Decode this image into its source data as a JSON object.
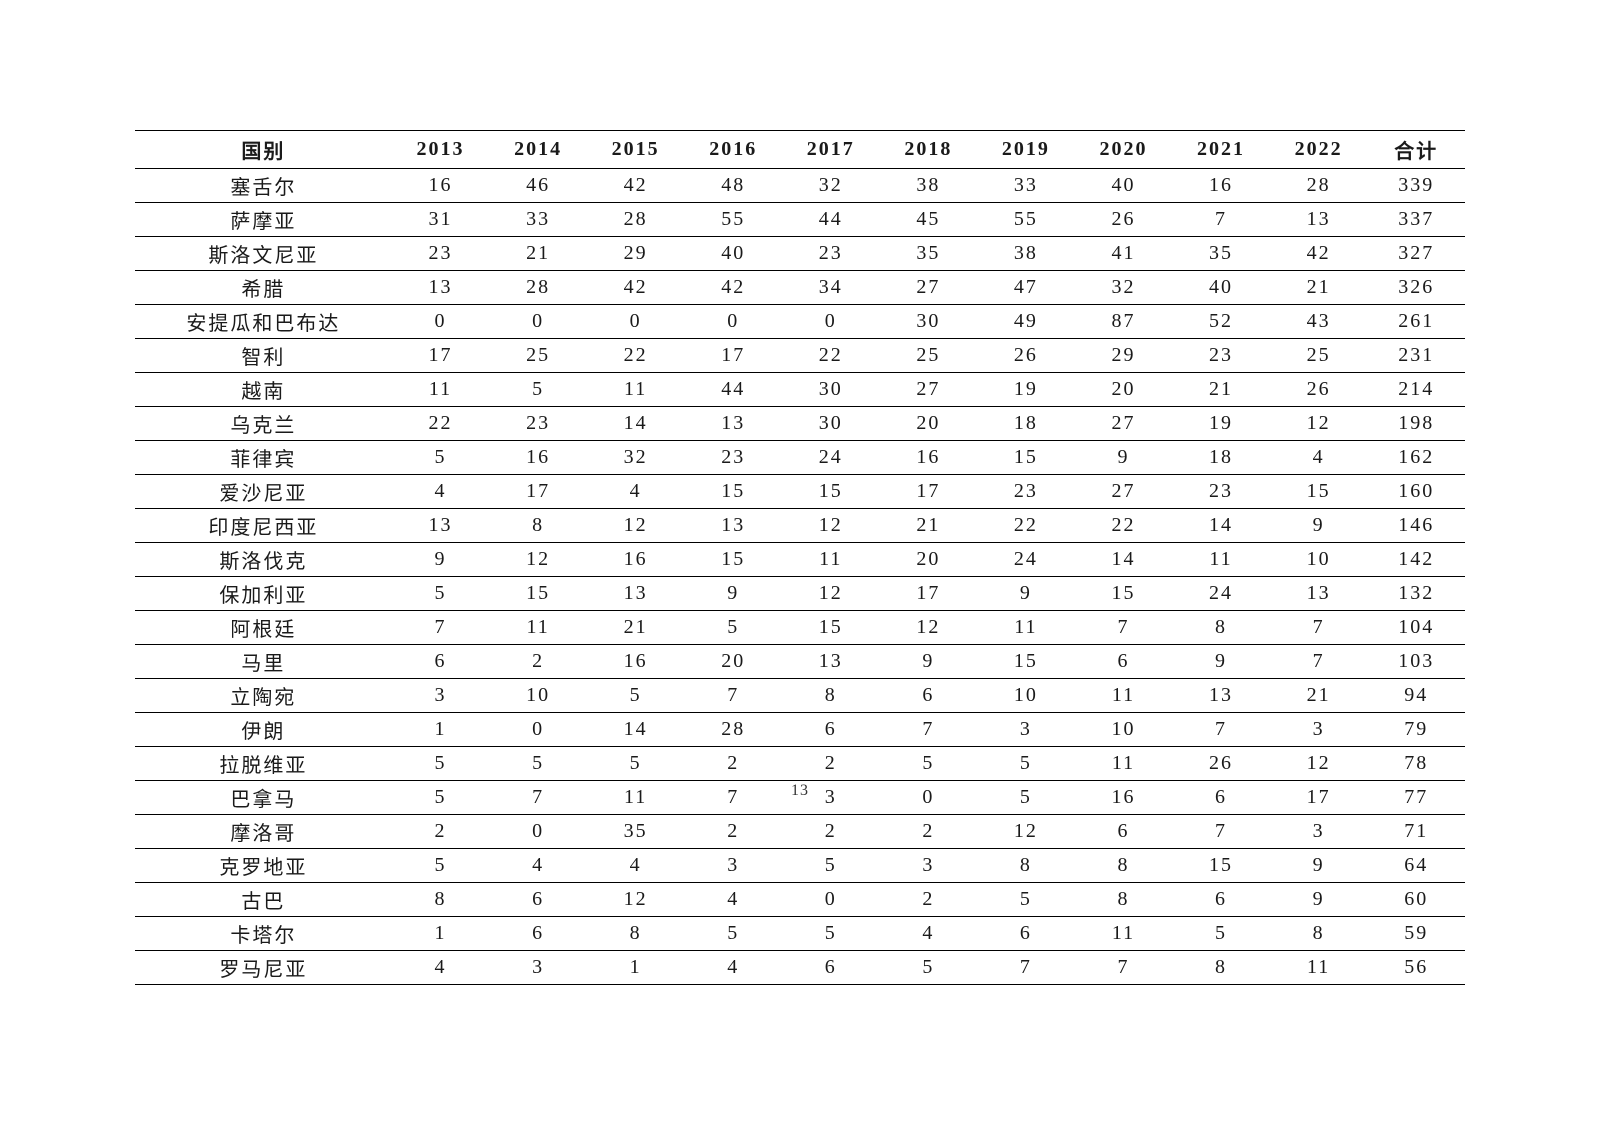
{
  "table": {
    "columns": [
      "国别",
      "2013",
      "2014",
      "2015",
      "2016",
      "2017",
      "2018",
      "2019",
      "2020",
      "2021",
      "2022",
      "合计"
    ],
    "rows": [
      [
        "塞舌尔",
        "16",
        "46",
        "42",
        "48",
        "32",
        "38",
        "33",
        "40",
        "16",
        "28",
        "339"
      ],
      [
        "萨摩亚",
        "31",
        "33",
        "28",
        "55",
        "44",
        "45",
        "55",
        "26",
        "7",
        "13",
        "337"
      ],
      [
        "斯洛文尼亚",
        "23",
        "21",
        "29",
        "40",
        "23",
        "35",
        "38",
        "41",
        "35",
        "42",
        "327"
      ],
      [
        "希腊",
        "13",
        "28",
        "42",
        "42",
        "34",
        "27",
        "47",
        "32",
        "40",
        "21",
        "326"
      ],
      [
        "安提瓜和巴布达",
        "0",
        "0",
        "0",
        "0",
        "0",
        "30",
        "49",
        "87",
        "52",
        "43",
        "261"
      ],
      [
        "智利",
        "17",
        "25",
        "22",
        "17",
        "22",
        "25",
        "26",
        "29",
        "23",
        "25",
        "231"
      ],
      [
        "越南",
        "11",
        "5",
        "11",
        "44",
        "30",
        "27",
        "19",
        "20",
        "21",
        "26",
        "214"
      ],
      [
        "乌克兰",
        "22",
        "23",
        "14",
        "13",
        "30",
        "20",
        "18",
        "27",
        "19",
        "12",
        "198"
      ],
      [
        "菲律宾",
        "5",
        "16",
        "32",
        "23",
        "24",
        "16",
        "15",
        "9",
        "18",
        "4",
        "162"
      ],
      [
        "爱沙尼亚",
        "4",
        "17",
        "4",
        "15",
        "15",
        "17",
        "23",
        "27",
        "23",
        "15",
        "160"
      ],
      [
        "印度尼西亚",
        "13",
        "8",
        "12",
        "13",
        "12",
        "21",
        "22",
        "22",
        "14",
        "9",
        "146"
      ],
      [
        "斯洛伐克",
        "9",
        "12",
        "16",
        "15",
        "11",
        "20",
        "24",
        "14",
        "11",
        "10",
        "142"
      ],
      [
        "保加利亚",
        "5",
        "15",
        "13",
        "9",
        "12",
        "17",
        "9",
        "15",
        "24",
        "13",
        "132"
      ],
      [
        "阿根廷",
        "7",
        "11",
        "21",
        "5",
        "15",
        "12",
        "11",
        "7",
        "8",
        "7",
        "104"
      ],
      [
        "马里",
        "6",
        "2",
        "16",
        "20",
        "13",
        "9",
        "15",
        "6",
        "9",
        "7",
        "103"
      ],
      [
        "立陶宛",
        "3",
        "10",
        "5",
        "7",
        "8",
        "6",
        "10",
        "11",
        "13",
        "21",
        "94"
      ],
      [
        "伊朗",
        "1",
        "0",
        "14",
        "28",
        "6",
        "7",
        "3",
        "10",
        "7",
        "3",
        "79"
      ],
      [
        "拉脱维亚",
        "5",
        "5",
        "5",
        "2",
        "2",
        "5",
        "5",
        "11",
        "26",
        "12",
        "78"
      ],
      [
        "巴拿马",
        "5",
        "7",
        "11",
        "7",
        "3",
        "0",
        "5",
        "16",
        "6",
        "17",
        "77"
      ],
      [
        "摩洛哥",
        "2",
        "0",
        "35",
        "2",
        "2",
        "2",
        "12",
        "6",
        "7",
        "3",
        "71"
      ],
      [
        "克罗地亚",
        "5",
        "4",
        "4",
        "3",
        "5",
        "3",
        "8",
        "8",
        "15",
        "9",
        "64"
      ],
      [
        "古巴",
        "8",
        "6",
        "12",
        "4",
        "0",
        "2",
        "5",
        "8",
        "6",
        "9",
        "60"
      ],
      [
        "卡塔尔",
        "1",
        "6",
        "8",
        "5",
        "5",
        "4",
        "6",
        "11",
        "5",
        "8",
        "59"
      ],
      [
        "罗马尼亚",
        "4",
        "3",
        "1",
        "4",
        "6",
        "5",
        "7",
        "7",
        "8",
        "11",
        "56"
      ]
    ]
  },
  "page_number": "13",
  "styling": {
    "background_color": "#ffffff",
    "text_color": "#1a1a1a",
    "border_color": "#000000",
    "font_family": "SimSun",
    "header_fontsize": 20,
    "body_fontsize": 20,
    "letter_spacing": 2
  }
}
